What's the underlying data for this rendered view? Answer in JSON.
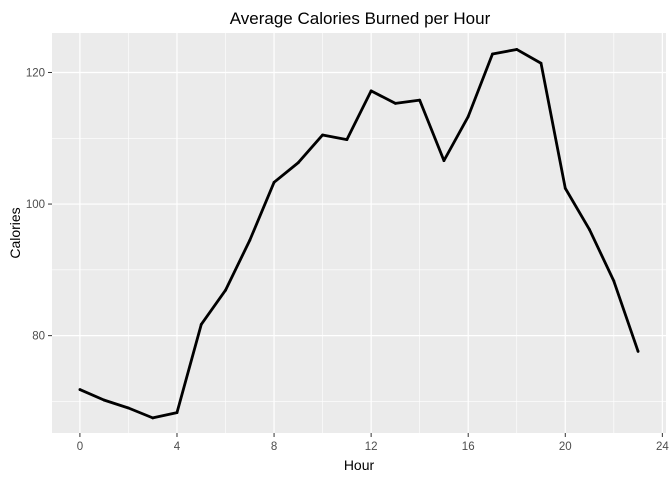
{
  "chart_data": {
    "type": "line",
    "title": "Average Calories Burned per Hour",
    "xlabel": "Hour",
    "ylabel": "Calories",
    "xlim": [
      -1.15,
      24.15
    ],
    "ylim": [
      65.2,
      126.0
    ],
    "x_ticks": [
      0,
      4,
      8,
      12,
      16,
      20,
      24
    ],
    "x_tick_labels": [
      "0",
      "4",
      "8",
      "12",
      "16",
      "20",
      "24"
    ],
    "y_ticks": [
      80,
      100,
      120
    ],
    "y_tick_labels": [
      "80",
      "100",
      "120"
    ],
    "grid": true,
    "legend": "none",
    "colors": {
      "panel": "#ebebeb",
      "grid_major": "#ffffff",
      "line": "#000000",
      "tick": "#333333"
    },
    "series": [
      {
        "x": [
          0,
          1,
          2,
          3,
          4,
          5,
          6,
          7,
          8,
          9,
          10,
          11,
          12,
          13,
          14,
          15,
          16,
          17,
          18,
          19,
          20,
          21,
          22,
          23
        ],
        "values": [
          71.8,
          70.2,
          69.0,
          67.5,
          68.3,
          81.7,
          86.9,
          94.5,
          103.3,
          106.3,
          110.5,
          109.8,
          117.2,
          115.3,
          115.8,
          106.6,
          113.3,
          122.8,
          123.5,
          121.4,
          102.4,
          96.1,
          88.3,
          77.6
        ]
      }
    ]
  }
}
